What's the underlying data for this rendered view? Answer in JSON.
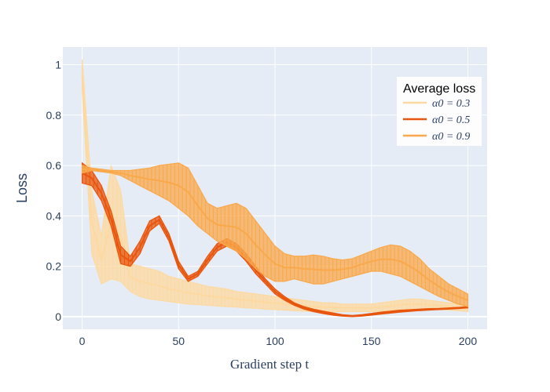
{
  "chart_data": {
    "type": "line",
    "xlabel": "Gradient step t",
    "ylabel": "Loss",
    "xlim": [
      -10,
      210
    ],
    "ylim": [
      -0.05,
      1.07
    ],
    "x_ticks": [
      0,
      50,
      100,
      150,
      200
    ],
    "y_ticks": [
      0,
      0.2,
      0.4,
      0.6,
      0.8,
      1
    ],
    "x_tick_labels": [
      "0",
      "50",
      "100",
      "150",
      "200"
    ],
    "y_tick_labels": [
      "0",
      "0.2",
      "0.4",
      "0.6",
      "0.8",
      "1"
    ],
    "grid": true,
    "background": "#e5ecf6",
    "legend": {
      "title": "Average loss",
      "position": "top-right"
    },
    "x": [
      0,
      5,
      10,
      15,
      20,
      25,
      30,
      35,
      40,
      45,
      50,
      55,
      60,
      65,
      70,
      75,
      80,
      85,
      90,
      95,
      100,
      105,
      110,
      115,
      120,
      125,
      130,
      135,
      140,
      145,
      150,
      155,
      160,
      165,
      170,
      175,
      180,
      185,
      190,
      195,
      200
    ],
    "series": [
      {
        "name": "α0 = 0.3",
        "color": "#fdd9a0",
        "upper": [
          1.02,
          0.5,
          0.32,
          0.6,
          0.5,
          0.21,
          0.2,
          0.19,
          0.18,
          0.16,
          0.15,
          0.14,
          0.13,
          0.12,
          0.115,
          0.11,
          0.1,
          0.095,
          0.09,
          0.085,
          0.08,
          0.075,
          0.07,
          0.065,
          0.06,
          0.055,
          0.055,
          0.05,
          0.05,
          0.05,
          0.05,
          0.055,
          0.06,
          0.065,
          0.07,
          0.07,
          0.065,
          0.06,
          0.055,
          0.05,
          0.045
        ],
        "lower": [
          0.9,
          0.25,
          0.13,
          0.15,
          0.14,
          0.1,
          0.08,
          0.07,
          0.065,
          0.06,
          0.055,
          0.05,
          0.048,
          0.045,
          0.042,
          0.04,
          0.038,
          0.035,
          0.033,
          0.03,
          0.028,
          0.026,
          0.024,
          0.022,
          0.02,
          0.02,
          0.02,
          0.02,
          0.02,
          0.02,
          0.02,
          0.022,
          0.025,
          0.028,
          0.03,
          0.03,
          0.03,
          0.028,
          0.026,
          0.024,
          0.02
        ]
      },
      {
        "name": "α0 = 0.5",
        "color": "#e8550c",
        "upper": [
          0.61,
          0.58,
          0.52,
          0.42,
          0.28,
          0.24,
          0.3,
          0.38,
          0.4,
          0.33,
          0.22,
          0.16,
          0.18,
          0.24,
          0.29,
          0.31,
          0.29,
          0.25,
          0.2,
          0.15,
          0.11,
          0.08,
          0.055,
          0.04,
          0.03,
          0.022,
          0.015,
          0.008,
          0.005,
          0.008,
          0.013,
          0.018,
          0.022,
          0.026,
          0.028,
          0.03,
          0.032,
          0.033,
          0.035,
          0.037,
          0.04
        ],
        "lower": [
          0.53,
          0.52,
          0.46,
          0.36,
          0.21,
          0.2,
          0.25,
          0.34,
          0.37,
          0.3,
          0.19,
          0.14,
          0.16,
          0.21,
          0.26,
          0.28,
          0.26,
          0.22,
          0.17,
          0.13,
          0.09,
          0.065,
          0.045,
          0.03,
          0.02,
          0.012,
          0.006,
          0.002,
          0.0,
          0.002,
          0.006,
          0.01,
          0.014,
          0.018,
          0.021,
          0.024,
          0.026,
          0.028,
          0.03,
          0.032,
          0.035
        ]
      },
      {
        "name": "α0 = 0.9",
        "color": "#f9a84a",
        "upper": [
          0.6,
          0.59,
          0.585,
          0.58,
          0.58,
          0.58,
          0.585,
          0.59,
          0.6,
          0.605,
          0.61,
          0.59,
          0.52,
          0.45,
          0.43,
          0.44,
          0.45,
          0.43,
          0.38,
          0.33,
          0.28,
          0.25,
          0.24,
          0.24,
          0.245,
          0.24,
          0.23,
          0.225,
          0.23,
          0.245,
          0.26,
          0.275,
          0.285,
          0.28,
          0.26,
          0.23,
          0.19,
          0.16,
          0.13,
          0.11,
          0.09
        ],
        "lower": [
          0.57,
          0.58,
          0.575,
          0.57,
          0.56,
          0.54,
          0.52,
          0.5,
          0.48,
          0.46,
          0.43,
          0.4,
          0.36,
          0.33,
          0.3,
          0.28,
          0.26,
          0.23,
          0.19,
          0.16,
          0.14,
          0.14,
          0.15,
          0.14,
          0.13,
          0.13,
          0.14,
          0.15,
          0.16,
          0.17,
          0.18,
          0.18,
          0.17,
          0.16,
          0.14,
          0.12,
          0.1,
          0.08,
          0.065,
          0.05,
          0.04
        ]
      }
    ]
  }
}
